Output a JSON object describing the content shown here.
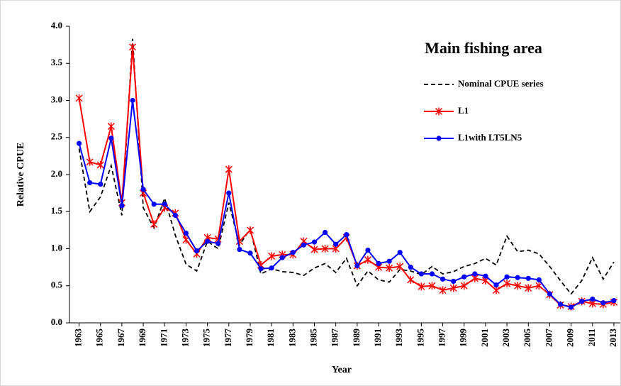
{
  "chart_data": {
    "type": "line",
    "title": "Main fishing area",
    "xlabel": "Year",
    "ylabel": "Relative CPUE",
    "x": [
      1963,
      1964,
      1965,
      1966,
      1967,
      1968,
      1969,
      1970,
      1971,
      1972,
      1973,
      1974,
      1975,
      1976,
      1977,
      1978,
      1979,
      1980,
      1981,
      1982,
      1983,
      1984,
      1985,
      1986,
      1987,
      1988,
      1989,
      1990,
      1991,
      1992,
      1993,
      1994,
      1995,
      1996,
      1997,
      1998,
      1999,
      2000,
      2001,
      2002,
      2003,
      2004,
      2005,
      2006,
      2007,
      2008,
      2009,
      2010,
      2011,
      2012,
      2013
    ],
    "series": [
      {
        "name": "Nominal CPUE series",
        "color": "#000000",
        "dash": true,
        "marker": "none",
        "values": [
          2.35,
          1.5,
          1.7,
          2.12,
          1.45,
          3.83,
          1.55,
          1.28,
          1.68,
          1.18,
          0.79,
          0.7,
          1.1,
          1.0,
          1.62,
          1.05,
          1.27,
          0.66,
          0.73,
          0.69,
          0.68,
          0.64,
          0.74,
          0.8,
          0.68,
          0.87,
          0.5,
          0.7,
          0.58,
          0.55,
          0.72,
          0.7,
          0.65,
          0.76,
          0.66,
          0.69,
          0.76,
          0.8,
          0.87,
          0.78,
          1.17,
          0.96,
          0.98,
          0.93,
          0.76,
          0.57,
          0.39,
          0.57,
          0.88,
          0.59,
          0.82
        ]
      },
      {
        "name": "L1",
        "color": "#ff0000",
        "dash": false,
        "marker": "star",
        "values": [
          3.03,
          2.17,
          2.13,
          2.65,
          1.62,
          3.72,
          1.75,
          1.33,
          1.55,
          1.48,
          1.12,
          0.93,
          1.15,
          1.13,
          2.07,
          1.1,
          1.25,
          0.78,
          0.9,
          0.92,
          0.92,
          1.1,
          0.99,
          1.0,
          1.0,
          1.15,
          0.77,
          0.85,
          0.75,
          0.74,
          0.76,
          0.58,
          0.49,
          0.5,
          0.44,
          0.47,
          0.5,
          0.6,
          0.57,
          0.44,
          0.53,
          0.5,
          0.47,
          0.5,
          0.38,
          0.24,
          0.22,
          0.29,
          0.26,
          0.25,
          0.28
        ]
      },
      {
        "name": "L1with LT5LN5",
        "color": "#0000ff",
        "dash": false,
        "marker": "circle",
        "values": [
          2.42,
          1.89,
          1.87,
          2.49,
          1.58,
          3.0,
          1.8,
          1.6,
          1.6,
          1.45,
          1.21,
          0.97,
          1.1,
          1.07,
          1.75,
          0.99,
          0.94,
          0.73,
          0.74,
          0.88,
          0.95,
          1.05,
          1.09,
          1.22,
          1.06,
          1.19,
          0.77,
          0.98,
          0.8,
          0.83,
          0.95,
          0.75,
          0.66,
          0.66,
          0.59,
          0.56,
          0.62,
          0.66,
          0.63,
          0.51,
          0.62,
          0.61,
          0.6,
          0.58,
          0.39,
          0.25,
          0.21,
          0.29,
          0.32,
          0.27,
          0.3
        ]
      }
    ],
    "xlim": [
      1962.1,
      2013.6
    ],
    "xticks": [
      1963,
      1965,
      1967,
      1969,
      1971,
      1973,
      1975,
      1977,
      1979,
      1981,
      1983,
      1985,
      1987,
      1989,
      1991,
      1993,
      1995,
      1997,
      1999,
      2001,
      2003,
      2005,
      2007,
      2009,
      2011,
      2013
    ],
    "ylim": [
      0,
      4
    ],
    "yticks": [
      {
        "value": 0,
        "label": "0.0"
      },
      {
        "value": 0.5,
        "label": "0.5"
      },
      {
        "value": 1,
        "label": "1.0"
      },
      {
        "value": 1.5,
        "label": "1.5"
      },
      {
        "value": 2,
        "label": "2.0"
      },
      {
        "value": 2.5,
        "label": "2.5"
      },
      {
        "value": 3,
        "label": "3.0"
      },
      {
        "value": 3.5,
        "label": "3.5"
      },
      {
        "value": 4,
        "label": "4.0"
      }
    ],
    "grid": false,
    "legend": "upper right"
  }
}
